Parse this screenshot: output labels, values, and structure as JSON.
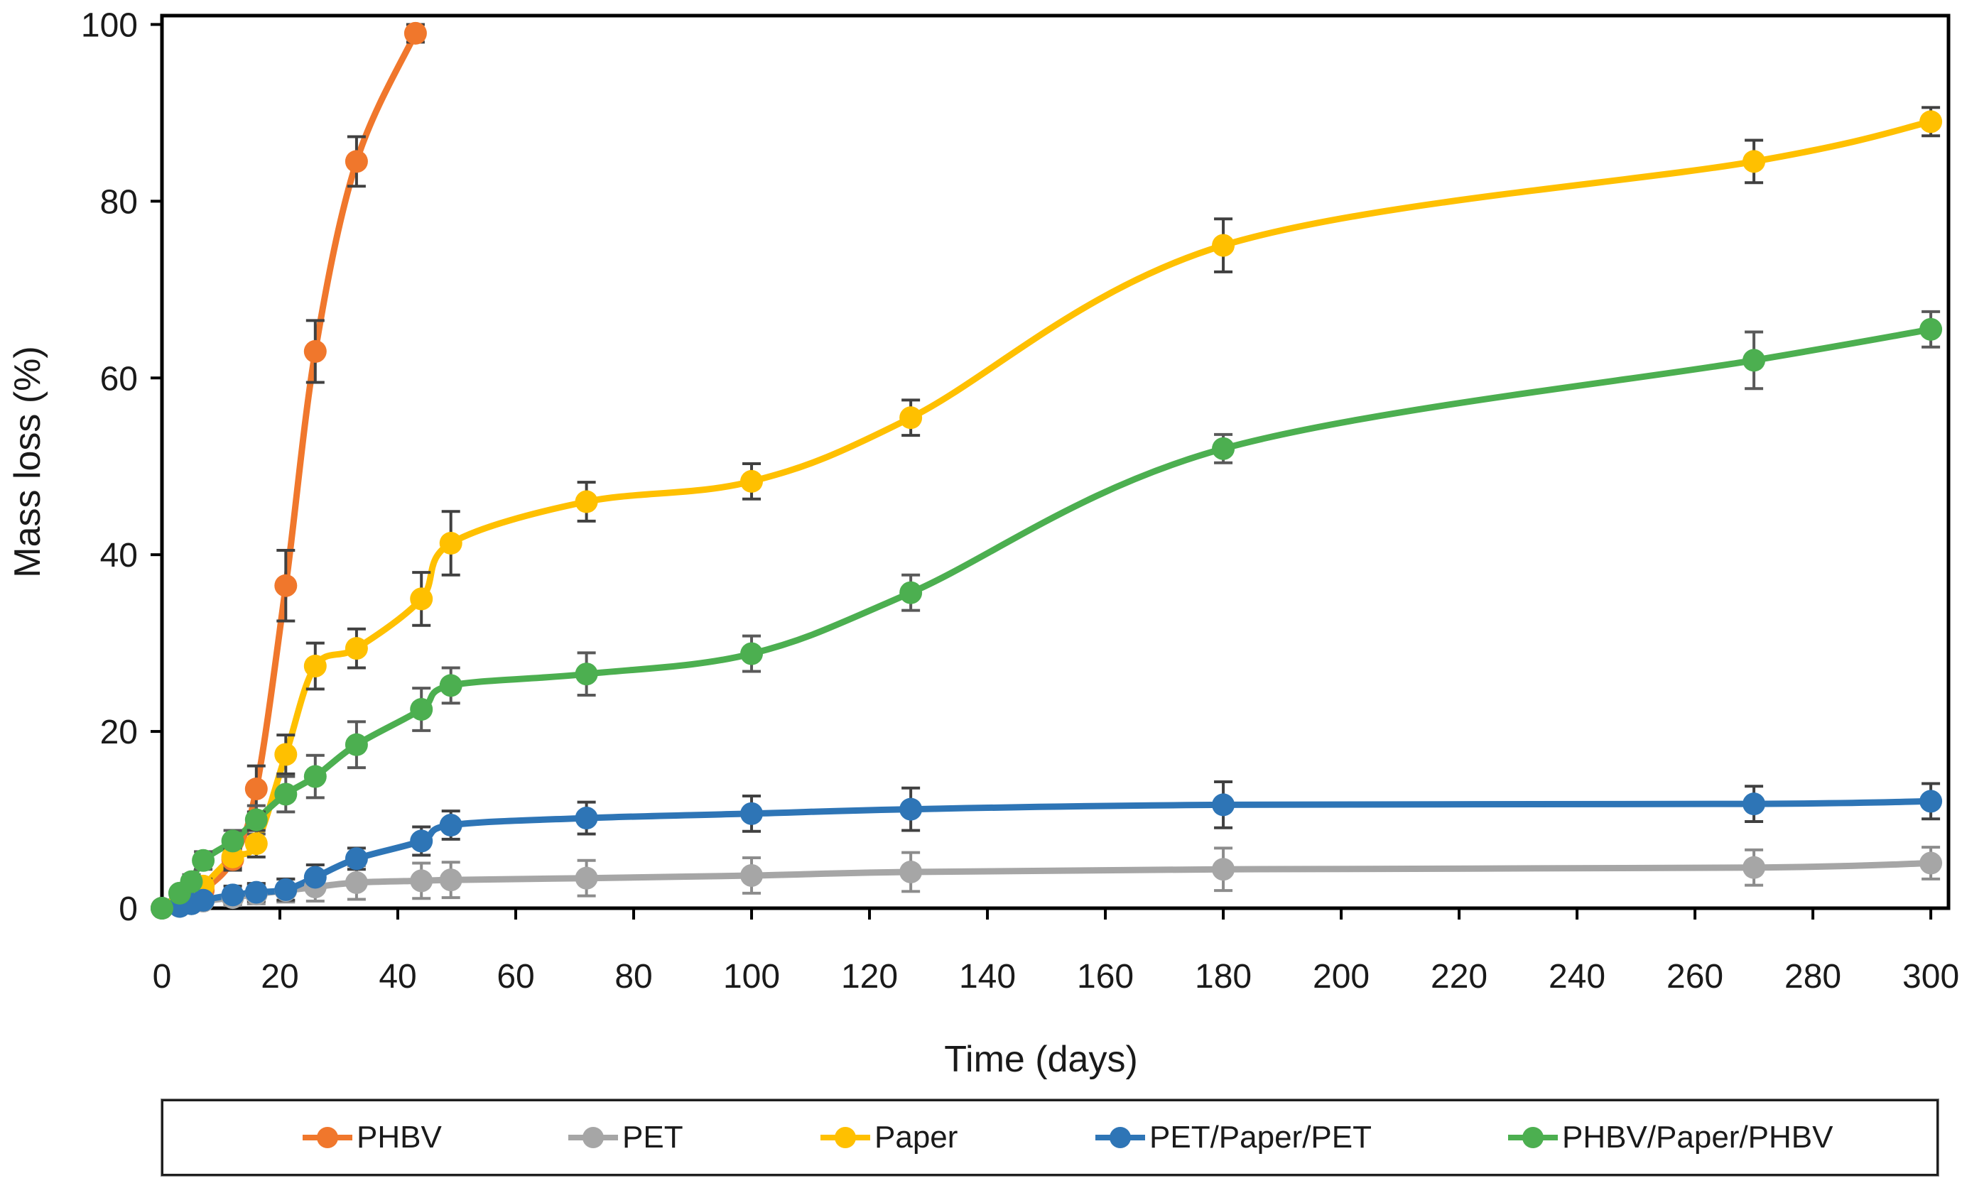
{
  "chart_data": {
    "type": "line",
    "title": "",
    "xlabel": "Time (days)",
    "ylabel": "Mass loss (%)",
    "xlim": [
      0,
      303
    ],
    "ylim": [
      0,
      101
    ],
    "x_ticks": [
      0,
      20,
      40,
      60,
      80,
      100,
      120,
      140,
      160,
      180,
      200,
      220,
      240,
      260,
      280,
      300
    ],
    "y_ticks": [
      0,
      20,
      40,
      60,
      80,
      100
    ],
    "grid": false,
    "legend_position": "bottom",
    "error_bars": true,
    "axis_color": "#000000",
    "tick_label_color": "#1a1a1a",
    "series": [
      {
        "name": "PHBV",
        "color": "#F0772C",
        "error_color": "#404040",
        "x": [
          0,
          3,
          5,
          7,
          12,
          16,
          21,
          26,
          33,
          43
        ],
        "y": [
          0,
          0.5,
          1,
          2,
          5.5,
          13.5,
          36.5,
          63,
          84.5,
          99
        ],
        "err": [
          0.2,
          0.2,
          0.3,
          0.5,
          1.2,
          2.6,
          4,
          3.5,
          2.8,
          1
        ]
      },
      {
        "name": "PET",
        "color": "#A6A6A6",
        "error_color": "#8c8c8c",
        "x": [
          0,
          3,
          5,
          7,
          12,
          16,
          21,
          26,
          33,
          44,
          49,
          72,
          100,
          127,
          180,
          270,
          300
        ],
        "y": [
          0,
          0.2,
          0.5,
          0.8,
          1.2,
          1.6,
          2,
          2.4,
          2.9,
          3.1,
          3.2,
          3.4,
          3.7,
          4.1,
          4.4,
          4.6,
          5.1
        ],
        "err": [
          0.2,
          0.3,
          0.4,
          0.6,
          0.9,
          1.1,
          1.3,
          1.6,
          1.9,
          2,
          2,
          2,
          2,
          2.2,
          2.4,
          2,
          1.8
        ]
      },
      {
        "name": "Paper",
        "color": "#FFC000",
        "error_color": "#404040",
        "x": [
          0,
          3,
          5,
          7,
          12,
          16,
          21,
          26,
          33,
          44,
          49,
          72,
          100,
          127,
          180,
          270,
          300
        ],
        "y": [
          0,
          0.6,
          1.3,
          2.5,
          5.8,
          7.3,
          17.4,
          27.4,
          29.4,
          35,
          41.3,
          46,
          48.3,
          55.5,
          75,
          84.5,
          89
        ],
        "err": [
          0.2,
          0.3,
          0.5,
          0.8,
          1.2,
          1.5,
          2.2,
          2.6,
          2.2,
          3,
          3.6,
          2.2,
          2,
          2,
          3,
          2.4,
          1.6
        ]
      },
      {
        "name": "PET/Paper/PET",
        "color": "#2E75B6",
        "error_color": "#404040",
        "x": [
          0,
          3,
          5,
          7,
          12,
          16,
          21,
          26,
          33,
          44,
          49,
          72,
          100,
          127,
          180,
          270,
          300
        ],
        "y": [
          0,
          0.2,
          0.5,
          0.9,
          1.5,
          1.8,
          2.1,
          3.5,
          5.6,
          7.6,
          9.4,
          10.2,
          10.7,
          11.2,
          11.7,
          11.8,
          12.1
        ],
        "err": [
          0.2,
          0.3,
          0.5,
          0.7,
          1,
          1,
          1.2,
          1.4,
          1.2,
          1.6,
          1.6,
          1.8,
          2,
          2.4,
          2.6,
          2,
          2
        ]
      },
      {
        "name": "PHBV/Paper/PHBV",
        "color": "#4CAF50",
        "error_color": "#595959",
        "x": [
          0,
          3,
          5,
          7,
          12,
          16,
          21,
          26,
          33,
          44,
          49,
          72,
          100,
          127,
          180,
          270,
          300
        ],
        "y": [
          0,
          1.7,
          3,
          5.4,
          7.6,
          10,
          12.9,
          14.9,
          18.5,
          22.5,
          25.2,
          26.5,
          28.8,
          35.7,
          52,
          62,
          65.5
        ],
        "err": [
          0.3,
          0.5,
          0.8,
          1,
          1.2,
          1.6,
          2,
          2.4,
          2.6,
          2.4,
          2,
          2.4,
          2,
          2,
          1.6,
          3.2,
          2
        ]
      }
    ]
  }
}
